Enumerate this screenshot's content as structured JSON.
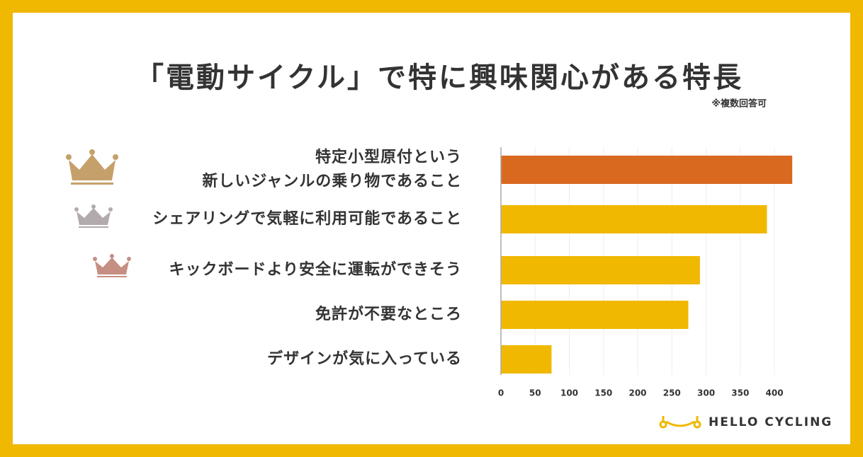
{
  "chart_data": {
    "type": "hbar",
    "title": "「電動サイクル」で特に興味関心がある特長",
    "subtitle": "※複数回答可",
    "categories": [
      "特定小型原付という\n新しいジャンルの乗り物であること",
      "シェアリングで気軽に利用可能であること",
      "キックボードより安全に運転ができそう",
      "免許が不要なところ",
      "デザインが気に入っている"
    ],
    "values": [
      426,
      389,
      291,
      274,
      74
    ],
    "colors": [
      "#d9691f",
      "#f0b800",
      "#f0b800",
      "#f0b800",
      "#f0b800"
    ],
    "xlim": [
      0,
      430
    ],
    "xticks": [
      0,
      50,
      100,
      150,
      200,
      250,
      300,
      350,
      400
    ],
    "grid": true,
    "brand": "HELLO CYCLING"
  }
}
